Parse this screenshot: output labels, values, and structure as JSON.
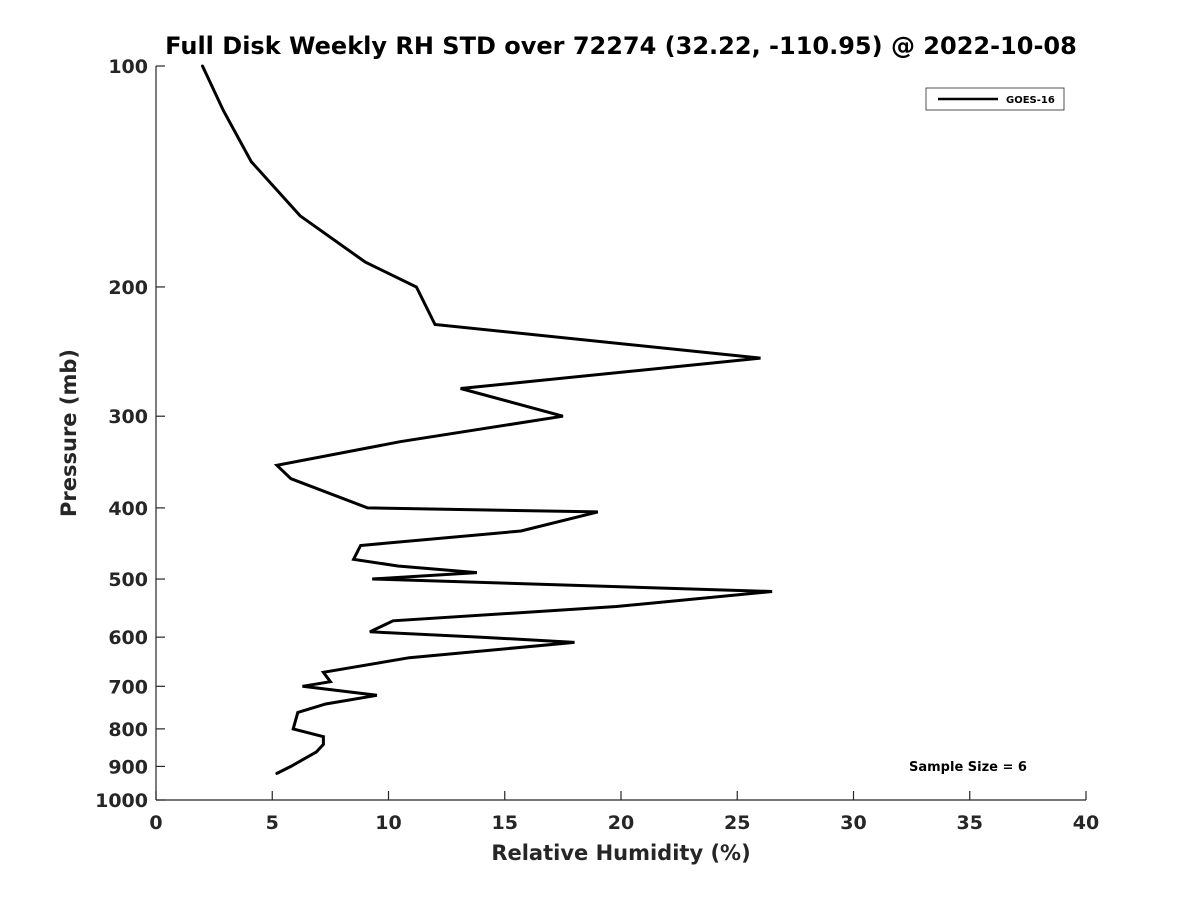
{
  "chart_data": {
    "type": "line",
    "title": "Full Disk Weekly RH STD over 72274 (32.22, -110.95) @ 2022-10-08",
    "xlabel": "Relative Humidity (%)",
    "ylabel": "Pressure (mb)",
    "xlim": [
      0,
      40
    ],
    "ylim": [
      100,
      1000
    ],
    "y_scale": "log",
    "y_reversed": true,
    "grid": false,
    "legend_position": "top-right",
    "x_ticks": [
      "0",
      "5",
      "10",
      "15",
      "20",
      "25",
      "30",
      "35",
      "40"
    ],
    "y_ticks": [
      "100",
      "200",
      "300",
      "400",
      "500",
      "600",
      "700",
      "800",
      "900",
      "1000"
    ],
    "annotation": "Sample Size = 6",
    "series": [
      {
        "name": "GOES-16",
        "color": "#000000",
        "points": [
          [
            2.0,
            100
          ],
          [
            2.9,
            115
          ],
          [
            4.1,
            135
          ],
          [
            6.2,
            160
          ],
          [
            9.0,
            185
          ],
          [
            11.2,
            200
          ],
          [
            12.0,
            225
          ],
          [
            26.0,
            250
          ],
          [
            13.1,
            275
          ],
          [
            17.5,
            300
          ],
          [
            10.5,
            325
          ],
          [
            5.2,
            350
          ],
          [
            5.8,
            365
          ],
          [
            9.1,
            400
          ],
          [
            19.0,
            405
          ],
          [
            15.7,
            430
          ],
          [
            8.8,
            450
          ],
          [
            8.5,
            470
          ],
          [
            10.4,
            480
          ],
          [
            13.8,
            490
          ],
          [
            9.3,
            500
          ],
          [
            26.5,
            520
          ],
          [
            19.8,
            545
          ],
          [
            10.2,
            570
          ],
          [
            9.2,
            590
          ],
          [
            14.0,
            600
          ],
          [
            18.0,
            610
          ],
          [
            10.9,
            640
          ],
          [
            7.2,
            670
          ],
          [
            7.5,
            690
          ],
          [
            6.3,
            700
          ],
          [
            9.5,
            720
          ],
          [
            7.3,
            740
          ],
          [
            6.1,
            760
          ],
          [
            5.9,
            800
          ],
          [
            7.2,
            820
          ],
          [
            7.2,
            840
          ],
          [
            6.9,
            860
          ],
          [
            5.8,
            900
          ],
          [
            5.2,
            920
          ]
        ]
      }
    ]
  }
}
